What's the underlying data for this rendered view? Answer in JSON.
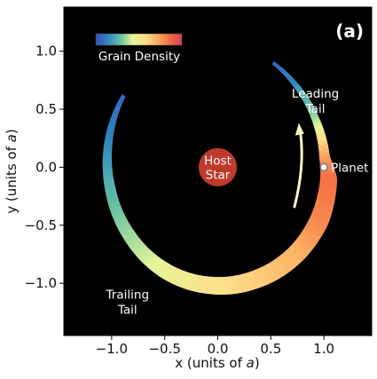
{
  "chart_data": {
    "type": "heatmap",
    "panel_label": "(a)",
    "xlabel_prefix": "x (units of ",
    "ylabel_prefix": "y (units of ",
    "axis_unit": "a",
    "axis_label_suffix": ")",
    "xlim": [
      -1.45,
      1.45
    ],
    "ylim": [
      -1.45,
      1.38
    ],
    "xticks": [
      -1.0,
      -0.5,
      0.0,
      0.5,
      1.0
    ],
    "xtick_labels": [
      "−1.0",
      "−0.5",
      "0.0",
      "0.5",
      "1.0"
    ],
    "yticks": [
      1.0,
      0.5,
      0.0,
      -0.5,
      -1.0
    ],
    "ytick_labels": [
      "1.0",
      "0.5",
      "0.0",
      "−0.5",
      "−1.0"
    ],
    "background_color": "#000000",
    "colorbar": {
      "label": "Grain Density",
      "colormap": "Spectral_r",
      "colors": [
        "#3b4cc0",
        "#3288bd",
        "#66c2a5",
        "#e6f598",
        "#fee08b",
        "#fdae61",
        "#f46d43",
        "#d53e4f"
      ]
    },
    "host_star": {
      "label_line1": "Host",
      "label_line2": "Star",
      "x": 0.0,
      "y": 0.0,
      "radius": 0.18,
      "color": "#c0392b"
    },
    "planet": {
      "label": "Planet",
      "x": 1.0,
      "y": 0.0
    },
    "annotations": [
      {
        "line1": "Leading",
        "line2": "Tail",
        "x": 0.7,
        "y": 0.6
      },
      {
        "line1": "Trailing",
        "line2": "Tail",
        "x": -0.85,
        "y": -1.05
      }
    ],
    "orbit_direction_arrow": {
      "from": [
        0.72,
        -0.35
      ],
      "to": [
        0.78,
        0.35
      ],
      "color": "#fff4c2"
    },
    "grain_distribution": {
      "description_center": "ring of dust around host star at orbital radius ~1.0",
      "leading_tail_end_angle_deg": 60,
      "trailing_tail_end_angle_deg": 145,
      "profile": [
        {
          "angle_deg": 60,
          "radius": 1.04,
          "width": 0.03,
          "density": 0.05
        },
        {
          "angle_deg": 45,
          "radius": 1.02,
          "width": 0.05,
          "density": 0.15
        },
        {
          "angle_deg": 25,
          "radius": 1.01,
          "width": 0.07,
          "density": 0.35
        },
        {
          "angle_deg": 5,
          "radius": 1.01,
          "width": 0.1,
          "density": 0.75
        },
        {
          "angle_deg": -5,
          "radius": 1.05,
          "width": 0.16,
          "density": 0.85
        },
        {
          "angle_deg": -25,
          "radius": 1.06,
          "width": 0.18,
          "density": 0.8
        },
        {
          "angle_deg": -45,
          "radius": 1.05,
          "width": 0.17,
          "density": 0.7
        },
        {
          "angle_deg": -70,
          "radius": 1.03,
          "width": 0.16,
          "density": 0.62
        },
        {
          "angle_deg": -95,
          "radius": 1.02,
          "width": 0.15,
          "density": 0.55
        },
        {
          "angle_deg": -120,
          "radius": 1.02,
          "width": 0.14,
          "density": 0.45
        },
        {
          "angle_deg": -145,
          "radius": 1.02,
          "width": 0.12,
          "density": 0.35
        },
        {
          "angle_deg": -170,
          "radius": 1.03,
          "width": 0.1,
          "density": 0.25
        },
        {
          "angle_deg": 170,
          "radius": 1.05,
          "width": 0.08,
          "density": 0.15
        },
        {
          "angle_deg": 145,
          "radius": 1.08,
          "width": 0.04,
          "density": 0.06
        }
      ]
    }
  }
}
